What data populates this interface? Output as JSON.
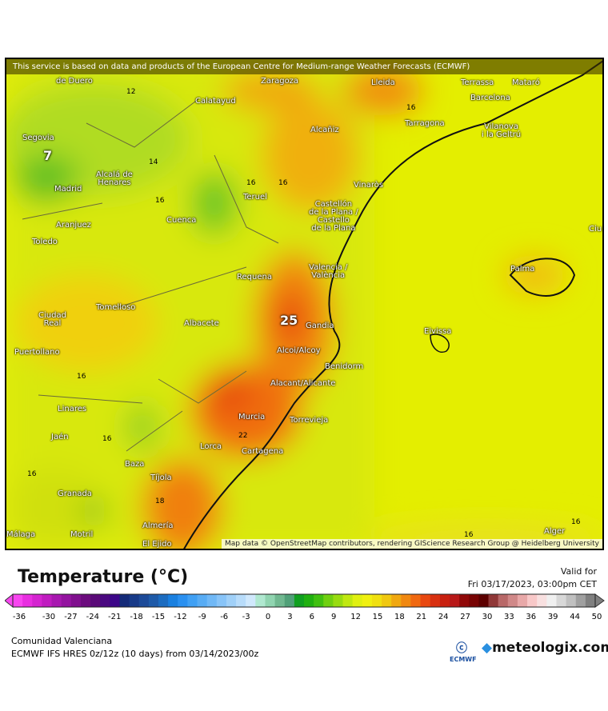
{
  "map": {
    "attribution_top": "This service is based on data and products of the European Centre for Medium-range Weather Forecasts (ECMWF)",
    "attribution_bottom": "Map data © OpenStreetMap contributors, rendering GIScience Research Group @ Heidelberg University",
    "cities": [
      "de Duero",
      "Zaragoza",
      "Lleida",
      "Terrassa",
      "Mataró",
      "Barcelona",
      "Calatayud",
      "Segovia",
      "Alcañiz",
      "Tarragona",
      "Vilanova\ni la Geltrú",
      "Alcalá de\nHenares",
      "Madrid",
      "Teruel",
      "Vinaròs",
      "Castellón\nde la Plana /\nCastello\nde la Plana",
      "Aranjuez",
      "Cuenca",
      "Toledo",
      "Ciu",
      "Palma",
      "Requena",
      "Valencia /\nValència",
      "Tomelloso",
      "Ciudad\nReal",
      "Albacete",
      "Gandia",
      "Eivissa",
      "Alcoi/Alcoy",
      "Puertollano",
      "Benidorm",
      "Alacant/Alicante",
      "Linares",
      "Murcia",
      "Torrevieja",
      "Jaén",
      "Lorca",
      "Cartagena",
      "Baza",
      "Tíjola",
      "Granada",
      "Almería",
      "Málaga",
      "Motril",
      "El Ejido",
      "Alger"
    ],
    "isotherm_labels": [
      "12",
      "16",
      "14",
      "16",
      "16",
      "16",
      "16",
      "16",
      "22",
      "16",
      "18",
      "16",
      "16"
    ],
    "highlight_values": [
      "7",
      "25"
    ]
  },
  "legend": {
    "title": "Temperature (°C)",
    "valid_label": "Valid for",
    "valid_time": "Fri 03/17/2023, 03:00pm CET",
    "ticks": [
      "-36",
      "-30",
      "-27",
      "-24",
      "-21",
      "-18",
      "-15",
      "-12",
      "-9",
      "-6",
      "-3",
      "0",
      "3",
      "6",
      "9",
      "12",
      "15",
      "18",
      "21",
      "24",
      "27",
      "30",
      "33",
      "36",
      "39",
      "44",
      "50"
    ],
    "colors": [
      "#f845f0",
      "#e82ee0",
      "#d424d0",
      "#c01cc0",
      "#a818b0",
      "#9414a0",
      "#80108e",
      "#6c0c7e",
      "#5a0a78",
      "#4a0880",
      "#3c0688",
      "#142a78",
      "#183a88",
      "#1c4a98",
      "#1e5aa8",
      "#1c6cc0",
      "#1a80e0",
      "#2a90f0",
      "#40a0f4",
      "#58acf4",
      "#70b8f6",
      "#88c4f8",
      "#a0d0f8",
      "#b8dcfa",
      "#d0e8fc",
      "#b0e8d0",
      "#90d4b0",
      "#70b890",
      "#50a078",
      "#10a020",
      "#20b010",
      "#40c010",
      "#70d010",
      "#98dc10",
      "#c0e810",
      "#e0f010",
      "#f0f010",
      "#f0e010",
      "#f0c810",
      "#f0a810",
      "#f08810",
      "#f06810",
      "#e84810",
      "#d83010",
      "#c82010",
      "#b81818",
      "#900808",
      "#780404",
      "#5c0000",
      "#903838",
      "#b86868",
      "#d08888",
      "#e8a8a8",
      "#f8c8c8",
      "#f8e0e0",
      "#f0f0f0",
      "#d8d8d8",
      "#c0c0c0",
      "#a0a0a0",
      "#808080"
    ]
  },
  "footer": {
    "region": "Comunidad Valenciana",
    "model": "ECMWF IFS HRES 0z/12z (10 days) from  03/14/2023/00z",
    "ecmwf_label": "ECMWF",
    "brand": "meteologix.com"
  }
}
